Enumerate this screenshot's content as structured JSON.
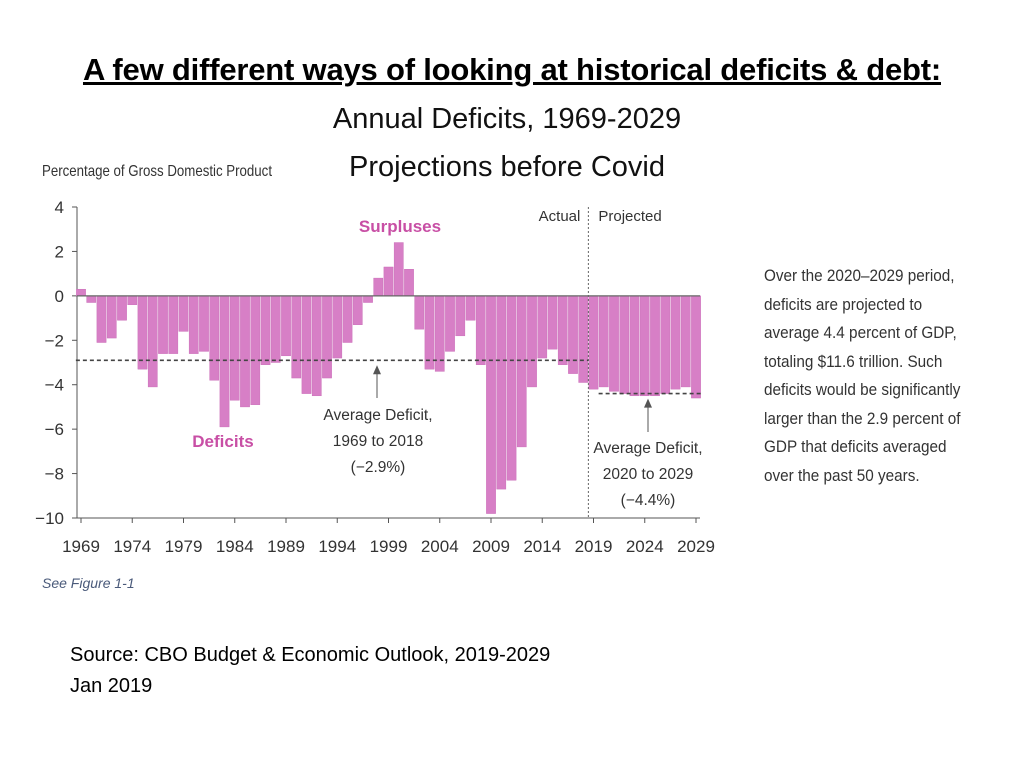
{
  "slide": {
    "title": "A few different ways of looking at historical deficits & debt:",
    "subtitle1": "Annual Deficits, 1969-2029",
    "subtitle2": "Projections before Covid",
    "note": "Over the 2020–2029 period, deficits are projected to average 4.4 percent of GDP, totaling $11.6 trillion. Such deficits would be significantly larger than the 2.9 percent of GDP that deficits averaged over the past 50 years.",
    "source_line1": "Source: CBO Budget & Economic Outlook, 2019-2029",
    "source_line2": "Jan 2019"
  },
  "chart_data": {
    "type": "bar",
    "ylabel": "Percentage of Gross Domestic Product",
    "ylim": [
      -10,
      4
    ],
    "yticks": [
      4,
      2,
      0,
      -2,
      -4,
      -6,
      -8,
      -10
    ],
    "ytick_labels": [
      "4",
      "2",
      "0",
      "−2",
      "−4",
      "−6",
      "−8",
      "−10"
    ],
    "xtick_labels": [
      "1969",
      "1974",
      "1979",
      "1984",
      "1989",
      "1994",
      "1999",
      "2004",
      "2009",
      "2014",
      "2019",
      "2024",
      "2029"
    ],
    "years": [
      1969,
      1970,
      1971,
      1972,
      1973,
      1974,
      1975,
      1976,
      1977,
      1978,
      1979,
      1980,
      1981,
      1982,
      1983,
      1984,
      1985,
      1986,
      1987,
      1988,
      1989,
      1990,
      1991,
      1992,
      1993,
      1994,
      1995,
      1996,
      1997,
      1998,
      1999,
      2000,
      2001,
      2002,
      2003,
      2004,
      2005,
      2006,
      2007,
      2008,
      2009,
      2010,
      2011,
      2012,
      2013,
      2014,
      2015,
      2016,
      2017,
      2018,
      2019,
      2020,
      2021,
      2022,
      2023,
      2024,
      2025,
      2026,
      2027,
      2028,
      2029
    ],
    "values": [
      0.3,
      -0.3,
      -2.1,
      -1.9,
      -1.1,
      -0.4,
      -3.3,
      -4.1,
      -2.6,
      -2.6,
      -1.6,
      -2.6,
      -2.5,
      -3.8,
      -5.9,
      -4.7,
      -5.0,
      -4.9,
      -3.1,
      -3.0,
      -2.7,
      -3.7,
      -4.4,
      -4.5,
      -3.7,
      -2.8,
      -2.1,
      -1.3,
      -0.3,
      0.8,
      1.3,
      2.4,
      1.2,
      -1.5,
      -3.3,
      -3.4,
      -2.5,
      -1.8,
      -1.1,
      -3.1,
      -9.8,
      -8.7,
      -8.3,
      -6.8,
      -4.1,
      -2.8,
      -2.4,
      -3.1,
      -3.5,
      -3.9,
      -4.2,
      -4.1,
      -4.3,
      -4.4,
      -4.5,
      -4.5,
      -4.5,
      -4.4,
      -4.2,
      -4.1,
      -4.6
    ],
    "actual_label": "Actual",
    "projected_label": "Projected",
    "actual_last_year": 2018,
    "avg_actual": {
      "value": -2.9,
      "from": 1969,
      "to": 2018,
      "label_lines": [
        "Average Deficit,",
        "1969 to 2018",
        "(−2.9%)"
      ]
    },
    "avg_projected": {
      "value": -4.4,
      "from": 2020,
      "to": 2029,
      "label_lines": [
        "Average Deficit,",
        "2020 to 2029",
        "(−4.4%)"
      ]
    },
    "annotations": {
      "surpluses": "Surpluses",
      "deficits": "Deficits"
    },
    "footnote": "See Figure 1-1",
    "colors": {
      "bar": "#d77fc6",
      "bar_edge": "#c664b3",
      "label_pink": "#c84fa5",
      "axis": "#555555",
      "text": "#333333"
    }
  }
}
